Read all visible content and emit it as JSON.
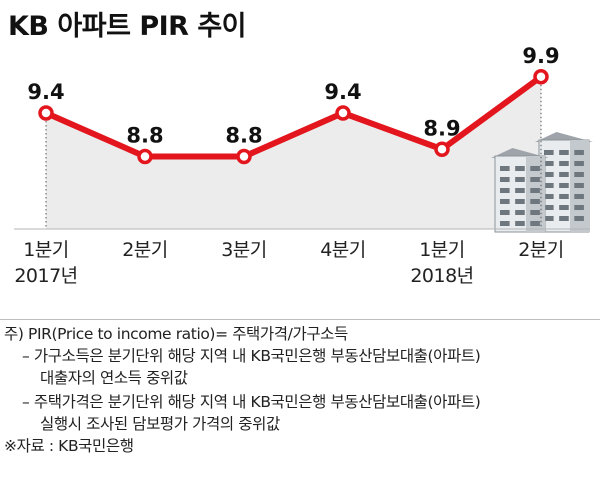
{
  "title": "KB 아파트 PIR 추이",
  "chart_data": {
    "type": "line",
    "categories": [
      "1분기",
      "2분기",
      "3분기",
      "4분기",
      "1분기",
      "2분기"
    ],
    "year_labels": [
      "2017년",
      "",
      "",
      "",
      "2018년",
      ""
    ],
    "series": [
      {
        "values": [
          9.4,
          8.8,
          8.8,
          9.4,
          8.9,
          9.9
        ]
      }
    ],
    "data_labels": [
      "9.4",
      "8.8",
      "8.8",
      "9.4",
      "8.9",
      "9.9"
    ],
    "ylim": [
      7.8,
      10.2
    ],
    "grid": false,
    "colors": {
      "line": "#e3161e",
      "marker_fill": "#ffffff",
      "area": "#ececec"
    }
  },
  "notes": {
    "line1": "주) PIR(Price to income ratio)= 주택가격/가구소득",
    "line2": "– 가구소득은 분기단위 해당 지역 내 KB국민은행 부동산담보대출(아파트)",
    "line3": "대출자의 연소득 중위값",
    "line4": "– 주택가격은 분기단위 해당 지역 내 KB국민은행 부동산담보대출(아파트)",
    "line5": "실행시 조사된 담보평가 가격의 중위값",
    "source": "※자료 : KB국민은행"
  }
}
